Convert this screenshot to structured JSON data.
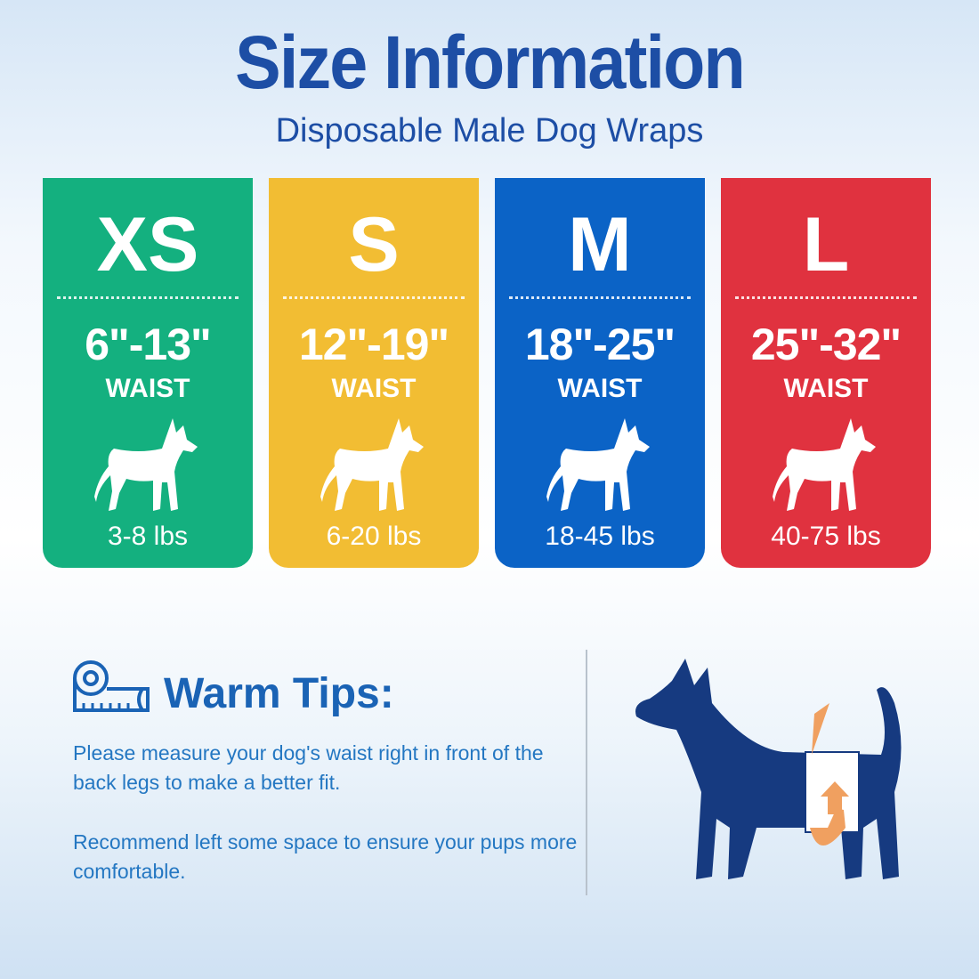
{
  "header": {
    "title": "Size Information",
    "subtitle": "Disposable Male Dog Wraps"
  },
  "sizes": [
    {
      "size": "XS",
      "waist_range": "6\"-13\"",
      "waist_label": "WAIST",
      "weight": "3-8 lbs",
      "color": "#14b07f"
    },
    {
      "size": "S",
      "waist_range": "12\"-19\"",
      "waist_label": "WAIST",
      "weight": "6-20 lbs",
      "color": "#f2bd33"
    },
    {
      "size": "M",
      "waist_range": "18\"-25\"",
      "waist_label": "WAIST",
      "weight": "18-45 lbs",
      "color": "#0b63c6"
    },
    {
      "size": "L",
      "waist_range": "25\"-32\"",
      "waist_label": "WAIST",
      "weight": "40-75 lbs",
      "color": "#e0323f"
    }
  ],
  "tips": {
    "icon": "measuring-tape-icon",
    "title": "Warm Tips:",
    "lines": [
      "Please measure your dog's waist right in front of the back legs to make a better fit.",
      "Recommend left some space to ensure your pups more comfortable."
    ]
  },
  "colors": {
    "title": "#1d4ea5",
    "tips_text": "#2477c2",
    "dog_silhouette": "#163a80",
    "wrap_arrow": "#f0a060"
  }
}
